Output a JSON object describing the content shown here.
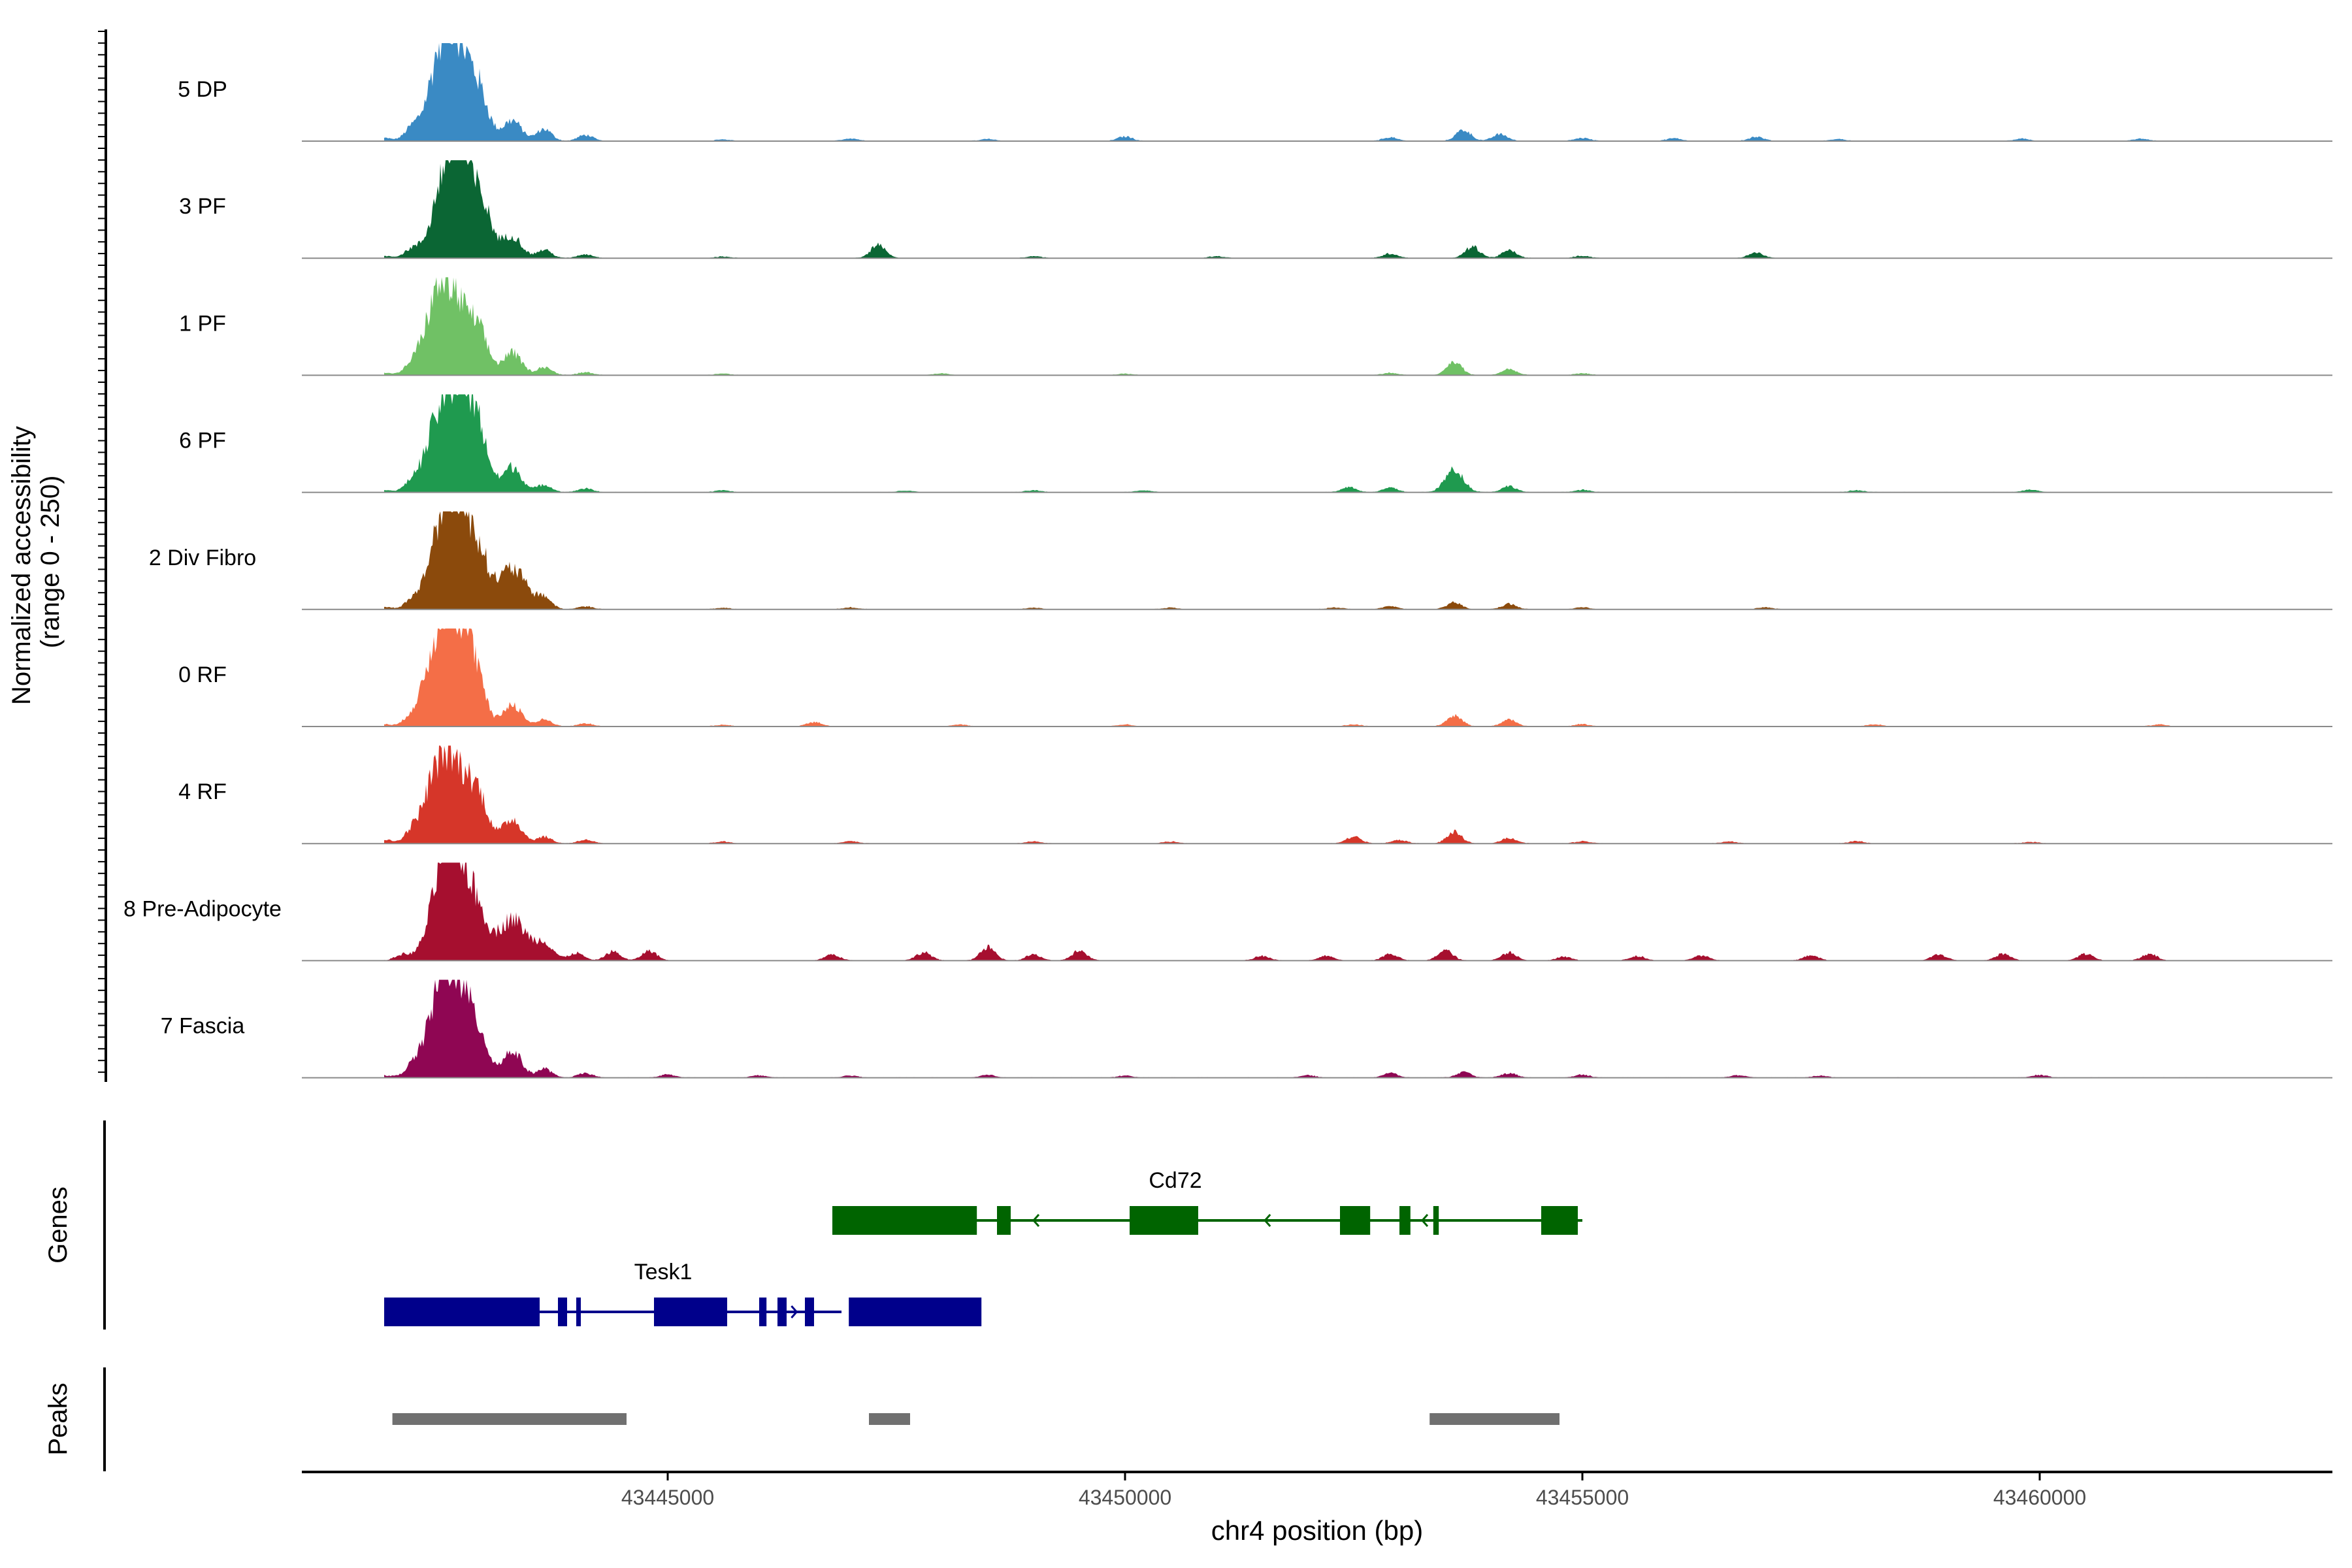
{
  "chart_data": {
    "type": "area",
    "title": "",
    "ylabel_line1": "Normalized accessibility",
    "ylabel_line2": "(range 0 - 250)",
    "y_range": [
      0,
      250
    ],
    "xlabel": "chr4 position (bp)",
    "x_range": [
      43441000,
      43463200
    ],
    "x_ticks": [
      43445000,
      43450000,
      43455000,
      43460000
    ],
    "x_tick_labels": [
      "43445000",
      "43450000",
      "43455000",
      "43460000"
    ],
    "tracks": [
      {
        "name": "5 DP",
        "color": "#3a8ac4"
      },
      {
        "name": "3 PF",
        "color": "#0b6634"
      },
      {
        "name": "1 PF",
        "color": "#70c165"
      },
      {
        "name": "6 PF",
        "color": "#1f9a4f"
      },
      {
        "name": "2 Div Fibro",
        "color": "#8b4a0c"
      },
      {
        "name": "0 RF",
        "color": "#f46e47"
      },
      {
        "name": "4 RF",
        "color": "#d63629"
      },
      {
        "name": "8 Pre-Adipocyte",
        "color": "#a60f2f"
      },
      {
        "name": "7 Fascia",
        "color": "#8f0653"
      }
    ],
    "peaks_by_track": [
      [
        [
          43441900,
          8
        ],
        [
          43442200,
          28
        ],
        [
          43442550,
          240
        ],
        [
          43442750,
          160
        ],
        [
          43442950,
          80
        ],
        [
          43443300,
          55
        ],
        [
          43443650,
          32
        ],
        [
          43444100,
          16
        ],
        [
          43445600,
          4
        ],
        [
          43447000,
          7
        ],
        [
          43448500,
          5
        ],
        [
          43450000,
          12
        ],
        [
          43452900,
          10
        ],
        [
          43453700,
          30
        ],
        [
          43454100,
          18
        ],
        [
          43455000,
          8
        ],
        [
          43456000,
          7
        ],
        [
          43456900,
          11
        ],
        [
          43457800,
          5
        ],
        [
          43459800,
          6
        ],
        [
          43461100,
          6
        ]
      ],
      [
        [
          43441900,
          6
        ],
        [
          43442200,
          22
        ],
        [
          43442600,
          225
        ],
        [
          43442800,
          160
        ],
        [
          43443000,
          75
        ],
        [
          43443300,
          60
        ],
        [
          43443650,
          22
        ],
        [
          43444100,
          10
        ],
        [
          43445600,
          4
        ],
        [
          43447300,
          34
        ],
        [
          43449000,
          5
        ],
        [
          43451000,
          5
        ],
        [
          43452900,
          12
        ],
        [
          43453800,
          30
        ],
        [
          43454200,
          20
        ],
        [
          43455000,
          6
        ],
        [
          43456900,
          14
        ]
      ],
      [
        [
          43441900,
          6
        ],
        [
          43442200,
          16
        ],
        [
          43442500,
          210
        ],
        [
          43442750,
          130
        ],
        [
          43442950,
          72
        ],
        [
          43443300,
          60
        ],
        [
          43443650,
          22
        ],
        [
          43444100,
          8
        ],
        [
          43445600,
          4
        ],
        [
          43448000,
          5
        ],
        [
          43450000,
          4
        ],
        [
          43452900,
          6
        ],
        [
          43453600,
          36
        ],
        [
          43454200,
          16
        ],
        [
          43455000,
          5
        ]
      ],
      [
        [
          43441900,
          6
        ],
        [
          43442200,
          18
        ],
        [
          43442500,
          170
        ],
        [
          43442750,
          240
        ],
        [
          43442950,
          90
        ],
        [
          43443300,
          68
        ],
        [
          43443650,
          20
        ],
        [
          43444100,
          10
        ],
        [
          43445600,
          5
        ],
        [
          43447600,
          4
        ],
        [
          43449000,
          5
        ],
        [
          43450200,
          5
        ],
        [
          43452450,
          14
        ],
        [
          43452900,
          12
        ],
        [
          43453600,
          60
        ],
        [
          43454200,
          16
        ],
        [
          43455000,
          6
        ],
        [
          43458000,
          5
        ],
        [
          43459900,
          7
        ]
      ],
      [
        [
          43441900,
          6
        ],
        [
          43442200,
          18
        ],
        [
          43442550,
          220
        ],
        [
          43442750,
          190
        ],
        [
          43442950,
          90
        ],
        [
          43443300,
          110
        ],
        [
          43443650,
          30
        ],
        [
          43444100,
          8
        ],
        [
          43445600,
          4
        ],
        [
          43447000,
          5
        ],
        [
          43449000,
          4
        ],
        [
          43450500,
          4
        ],
        [
          43452300,
          5
        ],
        [
          43452900,
          8
        ],
        [
          43453600,
          18
        ],
        [
          43454200,
          14
        ],
        [
          43455000,
          5
        ],
        [
          43457000,
          5
        ]
      ],
      [
        [
          43441900,
          6
        ],
        [
          43442200,
          18
        ],
        [
          43442500,
          200
        ],
        [
          43442700,
          220
        ],
        [
          43442900,
          95
        ],
        [
          43443300,
          60
        ],
        [
          43443650,
          18
        ],
        [
          43444100,
          8
        ],
        [
          43445600,
          4
        ],
        [
          43446600,
          12
        ],
        [
          43448200,
          5
        ],
        [
          43450000,
          5
        ],
        [
          43452500,
          5
        ],
        [
          43453600,
          30
        ],
        [
          43454200,
          18
        ],
        [
          43455000,
          6
        ],
        [
          43458200,
          5
        ],
        [
          43461300,
          5
        ]
      ],
      [
        [
          43441900,
          10
        ],
        [
          43442200,
          22
        ],
        [
          43442500,
          195
        ],
        [
          43442750,
          145
        ],
        [
          43442950,
          80
        ],
        [
          43443300,
          66
        ],
        [
          43443650,
          18
        ],
        [
          43444100,
          10
        ],
        [
          43445600,
          5
        ],
        [
          43447000,
          6
        ],
        [
          43449000,
          5
        ],
        [
          43450500,
          5
        ],
        [
          43452500,
          18
        ],
        [
          43453000,
          9
        ],
        [
          43453600,
          30
        ],
        [
          43454200,
          15
        ],
        [
          43455000,
          6
        ],
        [
          43456600,
          5
        ],
        [
          43458000,
          6
        ],
        [
          43459900,
          4
        ]
      ],
      [
        [
          43442100,
          15
        ],
        [
          43442550,
          170
        ],
        [
          43442700,
          230
        ],
        [
          43442950,
          80
        ],
        [
          43443300,
          112
        ],
        [
          43443650,
          45
        ],
        [
          43444000,
          20
        ],
        [
          43444400,
          24
        ],
        [
          43444800,
          26
        ],
        [
          43446800,
          16
        ],
        [
          43447800,
          22
        ],
        [
          43448500,
          35
        ],
        [
          43449000,
          16
        ],
        [
          43449500,
          26
        ],
        [
          43451500,
          12
        ],
        [
          43452200,
          12
        ],
        [
          43452900,
          18
        ],
        [
          43453500,
          28
        ],
        [
          43454200,
          22
        ],
        [
          43454800,
          10
        ],
        [
          43455600,
          12
        ],
        [
          43456300,
          14
        ],
        [
          43457500,
          14
        ],
        [
          43458900,
          16
        ],
        [
          43459600,
          18
        ],
        [
          43460500,
          18
        ],
        [
          43461200,
          18
        ]
      ],
      [
        [
          43441900,
          6
        ],
        [
          43442200,
          20
        ],
        [
          43442500,
          165
        ],
        [
          43442700,
          220
        ],
        [
          43442950,
          80
        ],
        [
          43443300,
          72
        ],
        [
          43443650,
          24
        ],
        [
          43444100,
          12
        ],
        [
          43445000,
          8
        ],
        [
          43446000,
          6
        ],
        [
          43447000,
          5
        ],
        [
          43448500,
          7
        ],
        [
          43450000,
          5
        ],
        [
          43452000,
          6
        ],
        [
          43452900,
          12
        ],
        [
          43453700,
          14
        ],
        [
          43454200,
          12
        ],
        [
          43455000,
          8
        ],
        [
          43456700,
          6
        ],
        [
          43457600,
          5
        ],
        [
          43460000,
          7
        ]
      ]
    ],
    "genes_label": "Genes",
    "genes": [
      {
        "name": "Tesk1",
        "color": "#00008b",
        "start": 43441900,
        "end": 43446900,
        "strand": "+",
        "exons": [
          [
            43441900,
            43443600
          ],
          [
            43443800,
            43443900
          ],
          [
            43444000,
            43444050
          ],
          [
            43444850,
            43445650
          ],
          [
            43446000,
            43446080
          ],
          [
            43446200,
            43446300
          ],
          [
            43446500,
            43446600
          ],
          [
            43446980,
            43448430
          ]
        ],
        "arrows": [
          43442020,
          43446410
        ]
      },
      {
        "name": "Cd72",
        "color": "#006400",
        "start": 43446850,
        "end": 43455000,
        "strand": "-",
        "exons": [
          [
            43446800,
            43448380
          ],
          [
            43448600,
            43448750
          ],
          [
            43450050,
            43450800
          ],
          [
            43452350,
            43452680
          ],
          [
            43453000,
            43453120
          ],
          [
            43453370,
            43453430
          ],
          [
            43454550,
            43454950
          ]
        ],
        "arrows": [
          43449000,
          43450550,
          43451530,
          43453250
        ]
      }
    ],
    "peaks_label": "Peaks",
    "peaks_color": "#707070",
    "peak_regions": [
      [
        43441990,
        43444550
      ],
      [
        43447200,
        43447650
      ],
      [
        43453330,
        43454750
      ]
    ]
  }
}
